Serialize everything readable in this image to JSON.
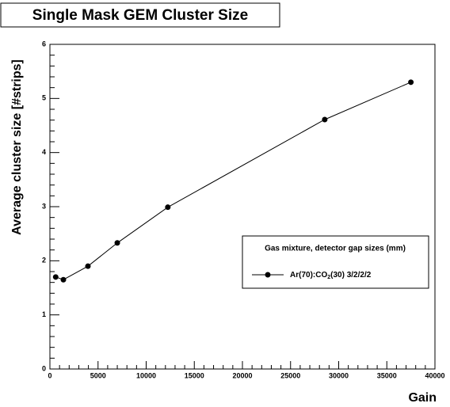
{
  "chart_data": {
    "type": "line",
    "title": "Single Mask GEM Cluster Size",
    "x_label": "Gain",
    "y_label": "Average cluster size [#strips]",
    "legend_title": "Gas mixture, detector gap sizes (mm)",
    "series": [
      {
        "name": "Ar(70):CO2(30) 3/2/2/2",
        "color": "#000000",
        "x": [
          600,
          1400,
          3950,
          7000,
          12250,
          28550,
          37500
        ],
        "values": [
          1.7,
          1.65,
          1.9,
          2.33,
          2.99,
          4.61,
          5.3
        ]
      }
    ],
    "xlim": [
      0,
      40000
    ],
    "xticks": [
      0,
      5000,
      10000,
      15000,
      20000,
      25000,
      30000,
      35000,
      40000
    ],
    "ylim": [
      0,
      6
    ],
    "yticks": [
      0,
      1,
      2,
      3,
      4,
      5,
      6
    ]
  }
}
